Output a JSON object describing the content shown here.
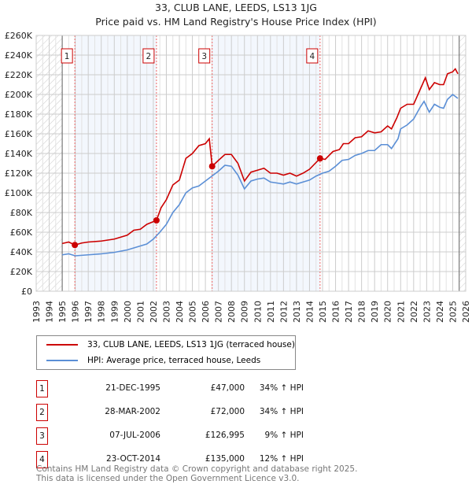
{
  "chart_data": {
    "type": "line",
    "title": "33, CLUB LANE, LEEDS, LS13 1JG",
    "subtitle": "Price paid vs. HM Land Registry's House Price Index (HPI)",
    "xlim": [
      1993,
      2026
    ],
    "ylim": [
      0,
      260000
    ],
    "x_ticks": [
      "1993",
      "1994",
      "1995",
      "1996",
      "1997",
      "1998",
      "1999",
      "2000",
      "2001",
      "2002",
      "2003",
      "2004",
      "2005",
      "2006",
      "2007",
      "2008",
      "2009",
      "2010",
      "2011",
      "2012",
      "2013",
      "2014",
      "2015",
      "2016",
      "2017",
      "2018",
      "2019",
      "2020",
      "2021",
      "2022",
      "2023",
      "2024",
      "2025",
      "2026"
    ],
    "y_ticks": [
      "£0",
      "£20K",
      "£40K",
      "£60K",
      "£80K",
      "£100K",
      "£120K",
      "£140K",
      "£160K",
      "£180K",
      "£200K",
      "£220K",
      "£240K",
      "£260K"
    ],
    "grid": true,
    "data_range": [
      1995,
      2025.5
    ],
    "series": [
      {
        "name": "33, CLUB LANE, LEEDS, LS13 1JG (terraced house)",
        "color": "#cc0000",
        "points": [
          [
            1995,
            48.5
          ],
          [
            1995.5,
            50
          ],
          [
            1995.97,
            47
          ],
          [
            1996.5,
            49
          ],
          [
            1997,
            50
          ],
          [
            1998,
            51
          ],
          [
            1999,
            53
          ],
          [
            2000,
            57
          ],
          [
            2000.5,
            62
          ],
          [
            2001,
            63
          ],
          [
            2001.5,
            68
          ],
          [
            2002.24,
            72
          ],
          [
            2002.6,
            85
          ],
          [
            2003,
            93
          ],
          [
            2003.5,
            108
          ],
          [
            2004,
            113
          ],
          [
            2004.5,
            135
          ],
          [
            2005,
            140
          ],
          [
            2005.5,
            148
          ],
          [
            2006,
            150
          ],
          [
            2006.3,
            155
          ],
          [
            2006.52,
            127
          ],
          [
            2007,
            133
          ],
          [
            2007.5,
            139
          ],
          [
            2008,
            139
          ],
          [
            2008.5,
            130
          ],
          [
            2009,
            112
          ],
          [
            2009.5,
            121
          ],
          [
            2010,
            123
          ],
          [
            2010.5,
            125
          ],
          [
            2011,
            120
          ],
          [
            2011.5,
            120
          ],
          [
            2012,
            118
          ],
          [
            2012.5,
            120
          ],
          [
            2013,
            117
          ],
          [
            2013.5,
            120
          ],
          [
            2014,
            124
          ],
          [
            2014.81,
            135
          ],
          [
            2015.2,
            134
          ],
          [
            2015.8,
            142
          ],
          [
            2016.3,
            144
          ],
          [
            2016.6,
            150
          ],
          [
            2017,
            150
          ],
          [
            2017.5,
            156
          ],
          [
            2018,
            157
          ],
          [
            2018.5,
            163
          ],
          [
            2019,
            161
          ],
          [
            2019.5,
            162
          ],
          [
            2020,
            168
          ],
          [
            2020.3,
            165
          ],
          [
            2020.7,
            176
          ],
          [
            2021,
            186
          ],
          [
            2021.5,
            190
          ],
          [
            2022,
            190
          ],
          [
            2022.5,
            205
          ],
          [
            2022.9,
            217
          ],
          [
            2023.2,
            205
          ],
          [
            2023.6,
            212
          ],
          [
            2024,
            210
          ],
          [
            2024.3,
            210
          ],
          [
            2024.6,
            221
          ],
          [
            2025,
            223
          ],
          [
            2025.2,
            226
          ],
          [
            2025.4,
            221
          ]
        ]
      },
      {
        "name": "HPI: Average price, terraced house, Leeds",
        "color": "#5b8fd6",
        "points": [
          [
            1995,
            37
          ],
          [
            1995.5,
            38
          ],
          [
            1996,
            36
          ],
          [
            1997,
            37
          ],
          [
            1998,
            38
          ],
          [
            1999,
            39.5
          ],
          [
            2000,
            42
          ],
          [
            2001,
            46
          ],
          [
            2001.5,
            48
          ],
          [
            2002,
            53
          ],
          [
            2002.5,
            60
          ],
          [
            2003,
            68
          ],
          [
            2003.5,
            80
          ],
          [
            2004,
            88
          ],
          [
            2004.5,
            100
          ],
          [
            2005,
            105
          ],
          [
            2005.5,
            107
          ],
          [
            2006,
            112
          ],
          [
            2006.5,
            117
          ],
          [
            2007,
            122
          ],
          [
            2007.5,
            128
          ],
          [
            2008,
            127
          ],
          [
            2008.5,
            118
          ],
          [
            2009,
            104
          ],
          [
            2009.5,
            112
          ],
          [
            2010,
            114
          ],
          [
            2010.5,
            115
          ],
          [
            2011,
            111
          ],
          [
            2011.5,
            110
          ],
          [
            2012,
            109
          ],
          [
            2012.5,
            111
          ],
          [
            2013,
            109
          ],
          [
            2013.5,
            111
          ],
          [
            2014,
            113
          ],
          [
            2014.5,
            117
          ],
          [
            2015,
            120
          ],
          [
            2015.5,
            122
          ],
          [
            2016,
            127
          ],
          [
            2016.5,
            133
          ],
          [
            2017,
            134
          ],
          [
            2017.5,
            138
          ],
          [
            2018,
            140
          ],
          [
            2018.5,
            143
          ],
          [
            2019,
            143
          ],
          [
            2019.5,
            149
          ],
          [
            2020,
            149
          ],
          [
            2020.3,
            145
          ],
          [
            2020.8,
            155
          ],
          [
            2021,
            165
          ],
          [
            2021.5,
            169
          ],
          [
            2022,
            175
          ],
          [
            2022.5,
            187
          ],
          [
            2022.8,
            193
          ],
          [
            2023.2,
            182
          ],
          [
            2023.6,
            190
          ],
          [
            2024,
            187
          ],
          [
            2024.3,
            186
          ],
          [
            2024.6,
            195
          ],
          [
            2025,
            200
          ],
          [
            2025.4,
            196
          ]
        ]
      }
    ],
    "sales": [
      {
        "label": "1",
        "year": 1995.97,
        "value": 47000,
        "date": "21-DEC-1995",
        "price": "£47,000",
        "hpi": "34% ↑ HPI"
      },
      {
        "label": "2",
        "year": 2002.24,
        "value": 72000,
        "date": "28-MAR-2002",
        "price": "£72,000",
        "hpi": "34% ↑ HPI"
      },
      {
        "label": "3",
        "year": 2006.52,
        "value": 126995,
        "date": "07-JUL-2006",
        "price": "£126,995",
        "hpi": "9% ↑ HPI"
      },
      {
        "label": "4",
        "year": 2014.81,
        "value": 135000,
        "date": "23-OCT-2014",
        "price": "£135,000",
        "hpi": "12% ↑ HPI"
      }
    ]
  },
  "footer": {
    "line1": "Contains HM Land Registry data © Crown copyright and database right 2025.",
    "line2": "This data is licensed under the Open Government Licence v3.0."
  }
}
